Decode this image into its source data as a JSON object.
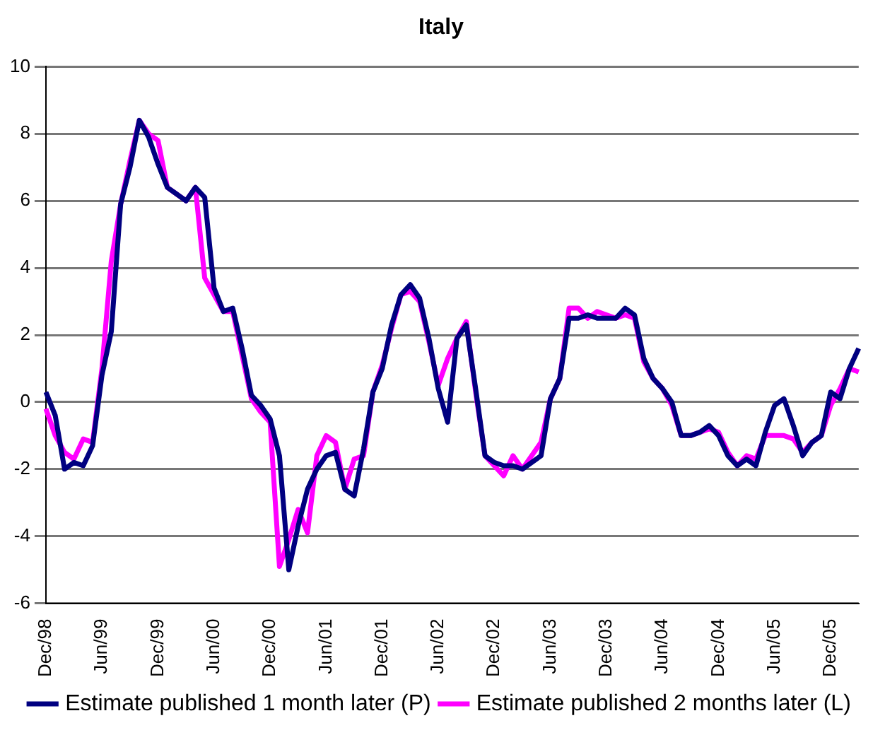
{
  "chart_data": {
    "type": "line",
    "title": "Italy",
    "categories": [
      "Dec/98",
      null,
      null,
      null,
      null,
      null,
      "Jun/99",
      null,
      null,
      null,
      null,
      null,
      "Dec/99",
      null,
      null,
      null,
      null,
      null,
      "Jun/00",
      null,
      null,
      null,
      null,
      null,
      "Dec/00",
      null,
      null,
      null,
      null,
      null,
      "Jun/01",
      null,
      null,
      null,
      null,
      null,
      "Dec/01",
      null,
      null,
      null,
      null,
      null,
      "Jun/02",
      null,
      null,
      null,
      null,
      null,
      "Dec/02",
      null,
      null,
      null,
      null,
      null,
      "Jun/03",
      null,
      null,
      null,
      null,
      null,
      "Dec/03",
      null,
      null,
      null,
      null,
      null,
      "Jun/04",
      null,
      null,
      null,
      null,
      null,
      "Dec/04",
      null,
      null,
      null,
      null,
      null,
      "Jun/05",
      null,
      null,
      null,
      null,
      null,
      "Dec/05",
      null,
      null,
      null
    ],
    "series": [
      {
        "name": "Estimate published 1 month later (P)",
        "color": "#000080",
        "values": [
          0.3,
          -0.4,
          -2.0,
          -1.8,
          -1.9,
          -1.3,
          0.8,
          2.1,
          5.9,
          7.0,
          8.4,
          7.9,
          7.1,
          6.4,
          6.2,
          6.0,
          6.4,
          6.1,
          3.4,
          2.7,
          2.8,
          1.6,
          0.2,
          -0.1,
          -0.5,
          -1.6,
          -5.0,
          -3.7,
          -2.6,
          -2.0,
          -1.6,
          -1.5,
          -2.6,
          -2.8,
          -1.4,
          0.3,
          1.0,
          2.3,
          3.2,
          3.5,
          3.1,
          1.9,
          0.4,
          -0.6,
          1.9,
          2.3,
          0.4,
          -1.6,
          -1.8,
          -1.9,
          -1.9,
          -2.0,
          -1.8,
          -1.6,
          0.1,
          0.7,
          2.5,
          2.5,
          2.6,
          2.5,
          2.5,
          2.5,
          2.8,
          2.6,
          1.3,
          0.7,
          0.4,
          0.0,
          -1.0,
          -1.0,
          -0.9,
          -0.7,
          -1.0,
          -1.6,
          -1.9,
          -1.7,
          -1.9,
          -0.9,
          -0.1,
          0.1,
          -0.7,
          -1.6,
          -1.2,
          -1.0,
          0.3,
          0.1,
          1.0,
          1.6
        ]
      },
      {
        "name": "Estimate published 2 months later (L)",
        "color": "#ff00ff",
        "values": [
          -0.2,
          -1.0,
          -1.5,
          -1.7,
          -1.1,
          -1.2,
          1.0,
          4.2,
          5.9,
          7.2,
          8.4,
          8.0,
          7.8,
          6.4,
          6.2,
          6.0,
          6.4,
          3.7,
          3.2,
          2.7,
          2.7,
          1.4,
          0.1,
          -0.3,
          -0.6,
          -4.9,
          -4.1,
          -3.2,
          -3.9,
          -1.6,
          -1.0,
          -1.2,
          -2.6,
          -1.7,
          -1.6,
          0.3,
          1.1,
          2.2,
          3.2,
          3.3,
          3.0,
          1.8,
          0.5,
          1.3,
          1.9,
          2.4,
          0.3,
          -1.6,
          -1.9,
          -2.2,
          -1.6,
          -2.0,
          -1.6,
          -1.2,
          0.1,
          0.7,
          2.8,
          2.8,
          2.5,
          2.7,
          2.6,
          2.5,
          2.6,
          2.5,
          1.2,
          0.7,
          0.4,
          -0.1,
          -1.0,
          -1.0,
          -0.9,
          -0.8,
          -0.9,
          -1.5,
          -1.9,
          -1.6,
          -1.7,
          -1.0,
          -1.0,
          -1.0,
          -1.1,
          -1.5,
          -1.2,
          -1.0,
          -0.1,
          0.4,
          1.0,
          0.9
        ]
      }
    ],
    "ylim": [
      -6,
      10
    ],
    "yticks": [
      -6,
      -4,
      -2,
      0,
      2,
      4,
      6,
      8,
      10
    ],
    "grid": "y",
    "legend": "bottom",
    "marker": "none",
    "line_style": "solid"
  }
}
